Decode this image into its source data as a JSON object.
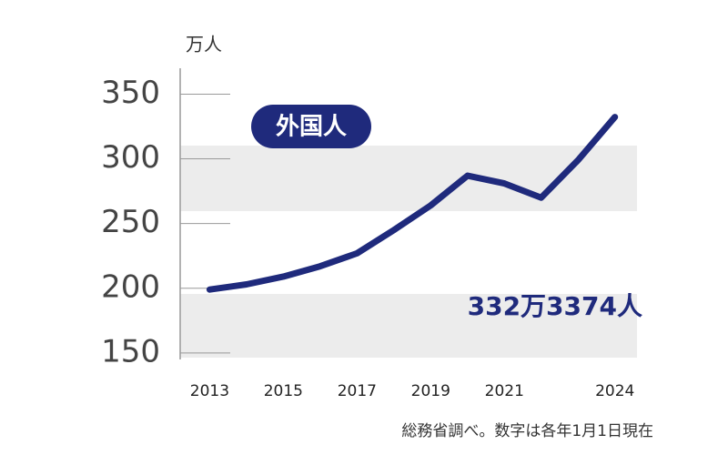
{
  "chart_data": {
    "type": "line",
    "y_unit": "万人",
    "x": [
      2013,
      2014,
      2015,
      2016,
      2017,
      2018,
      2019,
      2020,
      2021,
      2022,
      2023,
      2024
    ],
    "series": [
      {
        "name": "外国人",
        "color": "#1f2a7c",
        "values": [
          199,
          203,
          209,
          217,
          227,
          245,
          264,
          287,
          281,
          270,
          299,
          332.3374
        ]
      }
    ],
    "annotation": "332万3374人",
    "source": "総務省調べ。数字は各年1月1日現在",
    "xlim": [
      2012.2,
      2024.6
    ],
    "xticks": [
      2013,
      2015,
      2017,
      2019,
      2021,
      2024
    ],
    "ylim": [
      145,
      370
    ],
    "yticks": [
      150,
      200,
      250,
      300,
      350
    ]
  }
}
